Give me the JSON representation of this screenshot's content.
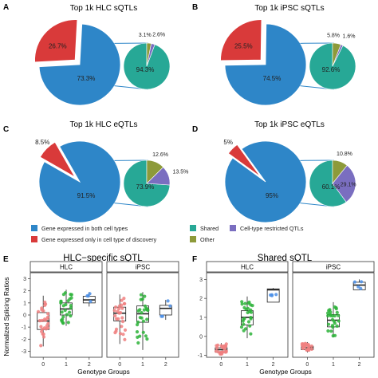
{
  "colors": {
    "blue": "#2E86C8",
    "red": "#D93A3A",
    "teal": "#27A896",
    "purple": "#7A6EC0",
    "olive": "#8D9A3A",
    "grp0": "#F08080",
    "grp1": "#2DB33A",
    "grp2": "#4C8FE6",
    "strip_fill": "#FFFFFF"
  },
  "chart_data": [
    {
      "panel": "A",
      "type": "pie",
      "title": "Top 1k HLC sQTLs",
      "main": {
        "categories": [
          "Gene expressed in both cell types",
          "Gene expressed only in cell type of discovery"
        ],
        "values": [
          73.3,
          26.7
        ],
        "labels": [
          "73.3%",
          "26.7%"
        ]
      },
      "detail": {
        "categories": [
          "Shared",
          "Cell-type restricted QTLs",
          "Other"
        ],
        "values": [
          94.3,
          2.6,
          3.1
        ],
        "labels": [
          "94.3%",
          "2.6%",
          "3.1%"
        ]
      }
    },
    {
      "panel": "B",
      "type": "pie",
      "title": "Top 1k iPSC sQTLs",
      "main": {
        "categories": [
          "Gene expressed in both cell types",
          "Gene expressed only in cell type of discovery"
        ],
        "values": [
          74.5,
          25.5
        ],
        "labels": [
          "74.5%",
          "25.5%"
        ]
      },
      "detail": {
        "categories": [
          "Shared",
          "Cell-type restricted QTLs",
          "Other"
        ],
        "values": [
          92.6,
          1.6,
          5.8
        ],
        "labels": [
          "92.6%",
          "1.6%",
          "5.8%"
        ]
      }
    },
    {
      "panel": "C",
      "type": "pie",
      "title": "Top 1k HLC eQTLs",
      "main": {
        "categories": [
          "Gene expressed in both cell types",
          "Gene expressed only in cell type of discovery"
        ],
        "values": [
          91.5,
          8.5
        ],
        "labels": [
          "91.5%",
          "8.5%"
        ]
      },
      "detail": {
        "categories": [
          "Shared",
          "Cell-type restricted QTLs",
          "Other"
        ],
        "values": [
          73.9,
          13.5,
          12.6
        ],
        "labels": [
          "73.9%",
          "13.5%",
          "12.6%"
        ]
      }
    },
    {
      "panel": "D",
      "type": "pie",
      "title": "Top 1k iPSC eQTLs",
      "main": {
        "categories": [
          "Gene expressed in both cell types",
          "Gene expressed only in cell type of discovery"
        ],
        "values": [
          95,
          5
        ],
        "labels": [
          "95%",
          "5%"
        ]
      },
      "detail": {
        "categories": [
          "Shared",
          "Cell-type restricted QTLs",
          "Other"
        ],
        "values": [
          60.1,
          29.1,
          10.8
        ],
        "labels": [
          "60.1%",
          "29.1%",
          "10.8%"
        ]
      }
    },
    {
      "panel": "E",
      "type": "box",
      "title": "HLC−specific sQTL",
      "facets": [
        "HLC",
        "iPSC"
      ],
      "categories": [
        "0",
        "1",
        "2"
      ],
      "xlabel": "Genotype Groups",
      "ylabel": "Normalized Splicing Ratios",
      "ylim": [
        -3.5,
        3.5
      ],
      "yticks": [
        -3,
        -2,
        -1,
        0,
        1,
        2,
        3
      ],
      "boxes": [
        [
          {
            "q1": -1.2,
            "med": -0.5,
            "q3": 0.2,
            "lo": -2.6,
            "hi": 1.6
          },
          {
            "q1": 0.0,
            "med": 0.5,
            "q3": 1.0,
            "lo": -0.9,
            "hi": 2.1
          },
          {
            "q1": 1.0,
            "med": 1.25,
            "q3": 1.55,
            "lo": 0.7,
            "hi": 1.9
          }
        ],
        [
          {
            "q1": -0.5,
            "med": 0.15,
            "q3": 0.65,
            "lo": -2.4,
            "hi": 1.7
          },
          {
            "q1": -0.6,
            "med": 0.1,
            "q3": 0.75,
            "lo": -2.9,
            "hi": 1.9
          },
          {
            "q1": 0.0,
            "med": 0.55,
            "q3": 0.8,
            "lo": -0.4,
            "hi": 1.25
          }
        ]
      ]
    },
    {
      "panel": "F",
      "type": "box",
      "title": "Shared sQTL",
      "facets": [
        "HLC",
        "iPSC"
      ],
      "categories": [
        "0",
        "1",
        "2"
      ],
      "xlabel": "Genotype Groups",
      "ylabel": "",
      "ylim": [
        -1.1,
        3.35
      ],
      "yticks": [
        -1,
        0,
        1,
        2,
        3
      ],
      "boxes": [
        [
          {
            "q1": -0.82,
            "med": -0.7,
            "q3": -0.6,
            "lo": -1.0,
            "hi": -0.35
          },
          {
            "q1": 0.6,
            "med": 1.0,
            "q3": 1.35,
            "lo": -0.1,
            "hi": 2.1
          },
          {
            "q1": 1.8,
            "med": 2.45,
            "q3": 2.5,
            "lo": 1.8,
            "hi": 2.55
          }
        ],
        [
          {
            "q1": -0.7,
            "med": -0.6,
            "q3": -0.52,
            "lo": -0.85,
            "hi": -0.3
          },
          {
            "q1": 0.5,
            "med": 0.85,
            "q3": 1.15,
            "lo": -0.05,
            "hi": 1.8
          },
          {
            "q1": 2.45,
            "med": 2.7,
            "q3": 2.85,
            "lo": 2.45,
            "hi": 3.0
          }
        ]
      ]
    }
  ],
  "legend": [
    {
      "label": "Gene expressed in both cell types",
      "color_key": "blue"
    },
    {
      "label": "Gene expressed only in cell type of discovery",
      "color_key": "red"
    },
    {
      "label": "Shared",
      "color_key": "teal"
    },
    {
      "label": "Cell-type restricted QTLs",
      "color_key": "purple"
    },
    {
      "label": "Other",
      "color_key": "olive"
    }
  ]
}
